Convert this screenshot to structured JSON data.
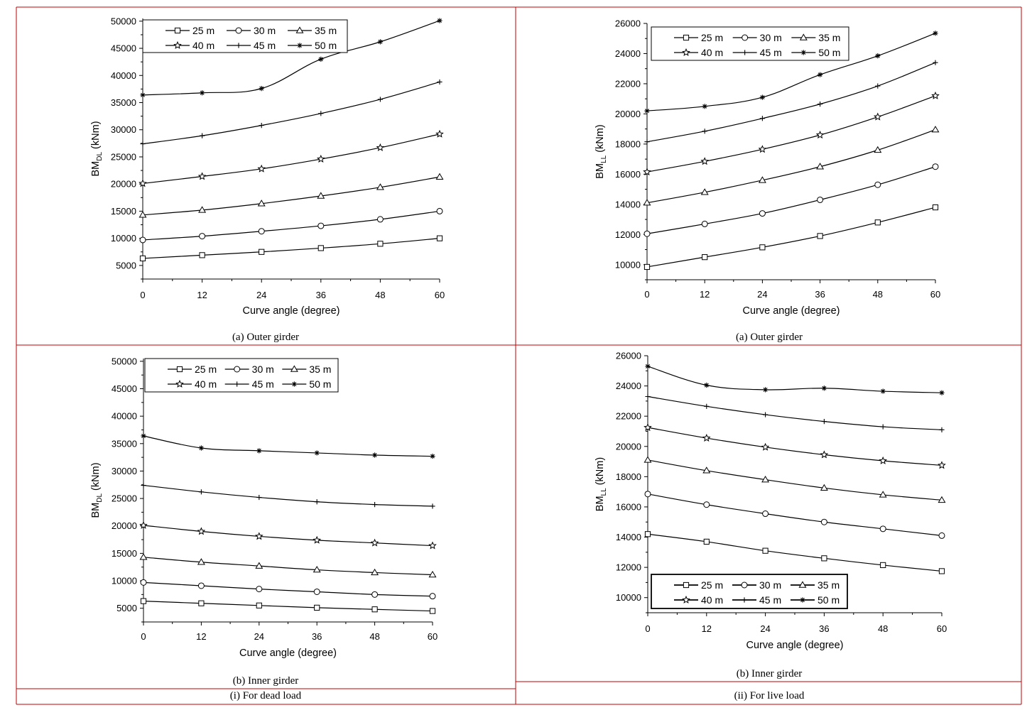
{
  "colors": {
    "grid_lines": "#c00000",
    "plot": "#000000"
  },
  "captions": {
    "top_left": "(a) Outer girder",
    "top_right": "(a) Outer girder",
    "bottom_left": "(b) Inner girder",
    "bottom_right": "(b) Inner girder",
    "footer_left": "(i) For dead load",
    "footer_right": "(ii) For live load"
  },
  "legend_labels": [
    "25 m",
    "30 m",
    "35 m",
    "40 m",
    "45 m",
    "50 m"
  ],
  "chart_data": [
    {
      "type": "line",
      "xlabel": "Curve angle (degree)",
      "ylabel": "BM",
      "ylabel_sub": "DL",
      "ylabel_unit": " (kNm)",
      "x": [
        0,
        12,
        24,
        36,
        48,
        60
      ],
      "xlim": [
        0,
        60
      ],
      "ylim": [
        2500,
        50500
      ],
      "yticks": [
        5000,
        10000,
        15000,
        20000,
        25000,
        30000,
        35000,
        40000,
        45000,
        50000
      ],
      "legend": "top-left",
      "series": [
        {
          "name": "25 m",
          "marker": "square",
          "values": [
            6300,
            6900,
            7500,
            8200,
            9000,
            10000
          ]
        },
        {
          "name": "30 m",
          "marker": "circle",
          "values": [
            9700,
            10400,
            11300,
            12300,
            13500,
            15000
          ]
        },
        {
          "name": "35 m",
          "marker": "triangle",
          "values": [
            14300,
            15200,
            16400,
            17800,
            19400,
            21300
          ]
        },
        {
          "name": "40 m",
          "marker": "star",
          "values": [
            20100,
            21400,
            22800,
            24600,
            26700,
            29200
          ]
        },
        {
          "name": "45 m",
          "marker": "plus",
          "values": [
            27400,
            28900,
            30800,
            33000,
            35600,
            38800
          ]
        },
        {
          "name": "50 m",
          "marker": "asterisk",
          "values": [
            36400,
            36800,
            37600,
            43000,
            46200,
            50100
          ]
        }
      ]
    },
    {
      "type": "line",
      "xlabel": "Curve angle (degree)",
      "ylabel": "BM",
      "ylabel_sub": "LL",
      "ylabel_unit": " (kNm)",
      "x": [
        0,
        12,
        24,
        36,
        48,
        60
      ],
      "xlim": [
        0,
        60
      ],
      "ylim": [
        9000,
        26000
      ],
      "yticks": [
        10000,
        12000,
        14000,
        16000,
        18000,
        20000,
        22000,
        24000,
        26000
      ],
      "legend": "top-left",
      "series": [
        {
          "name": "25 m",
          "marker": "square",
          "values": [
            9850,
            10500,
            11150,
            11900,
            12800,
            13800
          ]
        },
        {
          "name": "30 m",
          "marker": "circle",
          "values": [
            12050,
            12700,
            13400,
            14300,
            15300,
            16500
          ]
        },
        {
          "name": "35 m",
          "marker": "triangle",
          "values": [
            14100,
            14800,
            15600,
            16500,
            17600,
            18950
          ]
        },
        {
          "name": "40 m",
          "marker": "star",
          "values": [
            16150,
            16850,
            17650,
            18600,
            19800,
            21200
          ]
        },
        {
          "name": "45 m",
          "marker": "plus",
          "values": [
            18150,
            18850,
            19700,
            20650,
            21850,
            23400
          ]
        },
        {
          "name": "50 m",
          "marker": "asterisk",
          "values": [
            20200,
            20500,
            21100,
            22600,
            23850,
            25350
          ]
        }
      ]
    },
    {
      "type": "line",
      "xlabel": "Curve angle (degree)",
      "ylabel": "BM",
      "ylabel_sub": "DL",
      "ylabel_unit": " (kNm)",
      "x": [
        0,
        12,
        24,
        36,
        48,
        60
      ],
      "xlim": [
        0,
        60
      ],
      "ylim": [
        2500,
        50500
      ],
      "yticks": [
        5000,
        10000,
        15000,
        20000,
        25000,
        30000,
        35000,
        40000,
        45000,
        50000
      ],
      "legend": "top-left",
      "series": [
        {
          "name": "25 m",
          "marker": "square",
          "values": [
            6300,
            5900,
            5500,
            5100,
            4800,
            4500
          ]
        },
        {
          "name": "30 m",
          "marker": "circle",
          "values": [
            9700,
            9100,
            8500,
            8000,
            7500,
            7200
          ]
        },
        {
          "name": "35 m",
          "marker": "triangle",
          "values": [
            14300,
            13400,
            12700,
            12000,
            11500,
            11100
          ]
        },
        {
          "name": "40 m",
          "marker": "star",
          "values": [
            20100,
            19000,
            18100,
            17400,
            16900,
            16400
          ]
        },
        {
          "name": "45 m",
          "marker": "plus",
          "values": [
            27400,
            26200,
            25200,
            24400,
            23900,
            23600
          ]
        },
        {
          "name": "50 m",
          "marker": "asterisk",
          "values": [
            36400,
            34200,
            33700,
            33300,
            32900,
            32700
          ]
        }
      ]
    },
    {
      "type": "line",
      "xlabel": "Curve angle (degree)",
      "ylabel": "BM",
      "ylabel_sub": "LL",
      "ylabel_unit": " (kNm)",
      "x": [
        0,
        12,
        24,
        36,
        48,
        60
      ],
      "xlim": [
        0,
        60
      ],
      "ylim": [
        9000,
        26000
      ],
      "yticks": [
        10000,
        12000,
        14000,
        16000,
        18000,
        20000,
        22000,
        24000,
        26000
      ],
      "legend": "bottom-left",
      "series": [
        {
          "name": "25 m",
          "marker": "square",
          "values": [
            14200,
            13700,
            13100,
            12600,
            12150,
            11750
          ]
        },
        {
          "name": "30 m",
          "marker": "circle",
          "values": [
            16850,
            16150,
            15550,
            15000,
            14550,
            14100
          ]
        },
        {
          "name": "35 m",
          "marker": "triangle",
          "values": [
            19100,
            18400,
            17800,
            17250,
            16800,
            16450
          ]
        },
        {
          "name": "40 m",
          "marker": "star",
          "values": [
            21250,
            20550,
            19950,
            19450,
            19050,
            18750
          ]
        },
        {
          "name": "45 m",
          "marker": "plus",
          "values": [
            23300,
            22650,
            22100,
            21650,
            21300,
            21100
          ]
        },
        {
          "name": "50 m",
          "marker": "asterisk",
          "values": [
            25300,
            24050,
            23750,
            23850,
            23650,
            23550
          ]
        }
      ]
    }
  ]
}
